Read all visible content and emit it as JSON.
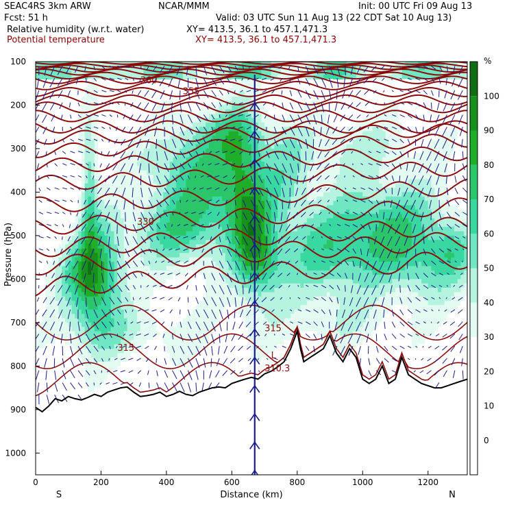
{
  "header": {
    "model": "SEAC4RS  3km ARW",
    "center": "NCAR/MMM",
    "init": "Init: 00 UTC Fri 09 Aug 13",
    "fcst": "Fcst:   51 h",
    "valid": "Valid: 03 UTC Sun 11 Aug 13 (22 CDT Sat 10 Aug 13)",
    "field1": "Relative humidity (w.r.t. water)",
    "xy1": "XY= 413.5, 36.1 to 457.1,471.3",
    "field2": "Potential temperature",
    "xy2": "XY= 413.5, 36.1 to 457.1,471.3"
  },
  "colors": {
    "theta": "#8b0a0a",
    "vectors": "#1a1a8c",
    "terrain": "#000000"
  },
  "chart_data": {
    "type": "cross-section",
    "xlabel": "Distance (km)",
    "ylabel": "Pressure (hPa)",
    "xlim": [
      0,
      1320
    ],
    "ylim": [
      1050,
      100
    ],
    "x_ticks": [
      0,
      200,
      400,
      600,
      800,
      1000,
      1200
    ],
    "y_ticks": [
      100,
      200,
      300,
      400,
      500,
      600,
      700,
      800,
      900,
      1000
    ],
    "end_labels": {
      "left": "S",
      "right": "N"
    },
    "colorbar": {
      "unit": "%",
      "levels": [
        0,
        10,
        20,
        30,
        40,
        50,
        60,
        70,
        80,
        90,
        100
      ],
      "colors": [
        "#ffffff",
        "#ffffff",
        "#ffffff",
        "#e4fbf2",
        "#b7f4e0",
        "#70e6c2",
        "#38d8a0",
        "#2cc66a",
        "#1fae2a",
        "#17901c",
        "#0f6e12"
      ]
    },
    "theta_labels": [
      {
        "text": "360",
        "x": 320,
        "p": 150
      },
      {
        "text": "355",
        "x": 450,
        "p": 175
      },
      {
        "text": "330",
        "x": 310,
        "p": 475
      },
      {
        "text": "315",
        "x": 250,
        "p": 765
      },
      {
        "text": "315",
        "x": 700,
        "p": 720
      },
      {
        "text": "L",
        "x": 720,
        "p": 782
      },
      {
        "text": "310.3",
        "x": 700,
        "p": 812
      }
    ],
    "terrain_surface": [
      [
        0,
        895
      ],
      [
        20,
        905
      ],
      [
        40,
        892
      ],
      [
        60,
        875
      ],
      [
        80,
        880
      ],
      [
        100,
        870
      ],
      [
        120,
        875
      ],
      [
        140,
        878
      ],
      [
        160,
        872
      ],
      [
        180,
        865
      ],
      [
        200,
        870
      ],
      [
        220,
        860
      ],
      [
        240,
        855
      ],
      [
        260,
        850
      ],
      [
        280,
        848
      ],
      [
        300,
        860
      ],
      [
        320,
        870
      ],
      [
        340,
        868
      ],
      [
        360,
        865
      ],
      [
        380,
        860
      ],
      [
        400,
        870
      ],
      [
        420,
        865
      ],
      [
        440,
        858
      ],
      [
        460,
        865
      ],
      [
        480,
        868
      ],
      [
        500,
        860
      ],
      [
        520,
        855
      ],
      [
        540,
        850
      ],
      [
        560,
        848
      ],
      [
        580,
        850
      ],
      [
        600,
        840
      ],
      [
        620,
        835
      ],
      [
        640,
        830
      ],
      [
        660,
        826
      ],
      [
        680,
        830
      ],
      [
        700,
        818
      ],
      [
        720,
        812
      ],
      [
        740,
        802
      ],
      [
        760,
        790
      ],
      [
        780,
        760
      ],
      [
        800,
        720
      ],
      [
        810,
        760
      ],
      [
        820,
        790
      ],
      [
        840,
        780
      ],
      [
        860,
        770
      ],
      [
        880,
        760
      ],
      [
        900,
        730
      ],
      [
        920,
        770
      ],
      [
        940,
        790
      ],
      [
        960,
        760
      ],
      [
        980,
        780
      ],
      [
        1000,
        830
      ],
      [
        1020,
        840
      ],
      [
        1040,
        830
      ],
      [
        1060,
        800
      ],
      [
        1080,
        840
      ],
      [
        1100,
        830
      ],
      [
        1120,
        780
      ],
      [
        1140,
        820
      ],
      [
        1160,
        830
      ],
      [
        1180,
        840
      ],
      [
        1200,
        845
      ],
      [
        1220,
        850
      ],
      [
        1240,
        850
      ],
      [
        1260,
        845
      ],
      [
        1280,
        840
      ],
      [
        1300,
        835
      ],
      [
        1320,
        830
      ]
    ]
  }
}
